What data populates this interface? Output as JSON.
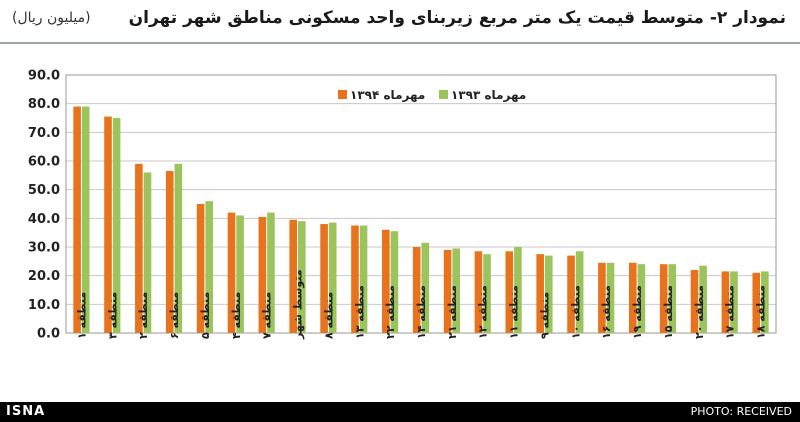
{
  "header": {
    "title": "نمودار ۲- متوسط قیمت یک متر مربع زیربنای واحد مسکونی مناطق شهر تهران",
    "unit": "(میلیون ریال)"
  },
  "footer": {
    "brand": "ISNA",
    "credit": "PHOTO: RECEIVED"
  },
  "colors": {
    "series_1394": "#e8731c",
    "series_1393": "#9bc45c",
    "grid": "#c8c8c8",
    "axis_text": "#222222"
  },
  "chart_data": {
    "type": "bar",
    "ylim": [
      0,
      90
    ],
    "yticks": [
      "0.0",
      "10.0",
      "20.0",
      "30.0",
      "40.0",
      "50.0",
      "60.0",
      "70.0",
      "80.0",
      "90.0"
    ],
    "grid": true,
    "legend": "top-right",
    "categories": [
      "منطقه ۱",
      "منطقه ۳",
      "منطقه ۲",
      "منطقه ۶",
      "منطقه ۵",
      "منطقه ۴",
      "منطقه ۷",
      "متوسط شهر",
      "منطقه ۸",
      "منطقه ۱۳",
      "منطقه ۲۲",
      "منطقه ۱۴",
      "منطقه ۲۱",
      "منطقه ۱۲",
      "منطقه ۱۱",
      "منطقه ۹",
      "منطقه ۱۰",
      "منطقه ۱۶",
      "منطقه ۱۹",
      "منطقه ۱۵",
      "منطقه ۲۰",
      "منطقه ۱۷",
      "منطقه ۱۸"
    ],
    "series": [
      {
        "name": "مهرماه ۱۳۹۴",
        "values": [
          79.0,
          75.5,
          59.0,
          56.5,
          45.0,
          42.0,
          40.5,
          39.5,
          38.0,
          37.5,
          36.0,
          30.0,
          29.0,
          28.5,
          28.5,
          27.5,
          27.0,
          24.5,
          24.5,
          24.0,
          22.0,
          21.5,
          21.0
        ]
      },
      {
        "name": "مهرماه ۱۳۹۳",
        "values": [
          79.0,
          75.0,
          56.0,
          59.0,
          46.0,
          41.0,
          42.0,
          39.0,
          38.5,
          37.5,
          35.5,
          31.5,
          29.5,
          27.5,
          30.0,
          27.0,
          28.5,
          24.5,
          24.0,
          24.0,
          23.5,
          21.5,
          21.5
        ]
      }
    ]
  }
}
